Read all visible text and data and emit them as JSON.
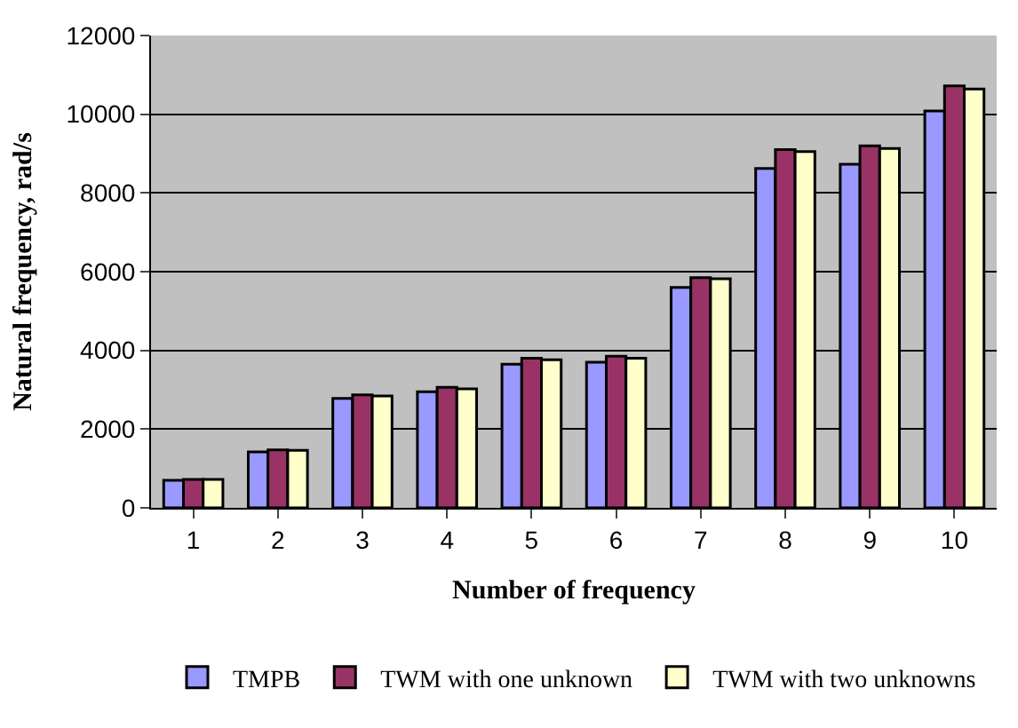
{
  "chart_data": {
    "type": "bar",
    "xlabel": "Number of frequency",
    "ylabel": "Natural frequency, rad/s",
    "categories": [
      "1",
      "2",
      "3",
      "4",
      "5",
      "6",
      "7",
      "8",
      "9",
      "10"
    ],
    "series": [
      {
        "name": "TMPB",
        "color": "#9999ff",
        "values": [
          700,
          1420,
          2780,
          2950,
          3650,
          3700,
          5600,
          8620,
          8730,
          10080
        ]
      },
      {
        "name": "TWM with one unknown",
        "color": "#993366",
        "values": [
          720,
          1470,
          2870,
          3060,
          3800,
          3850,
          5850,
          9100,
          9200,
          10720
        ]
      },
      {
        "name": "TWM with two unknowns",
        "color": "#ffffcc",
        "values": [
          720,
          1460,
          2840,
          3020,
          3760,
          3800,
          5820,
          9050,
          9130,
          10640
        ]
      }
    ],
    "ylim": [
      0,
      12000
    ],
    "yticks": [
      0,
      2000,
      4000,
      6000,
      8000,
      10000,
      12000
    ],
    "grid": "y",
    "legend": "bottom"
  }
}
